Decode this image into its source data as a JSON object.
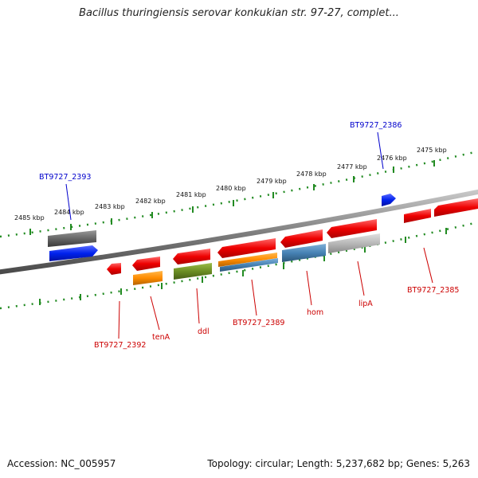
{
  "title": "Bacillus thuringiensis serovar konkukian str. 97-27, complet...",
  "accession": "Accession: NC_005957",
  "summary": "Topology: circular; Length: 5,237,682 bp; Genes: 5,263",
  "colors": {
    "backbone": "#808080",
    "ruler": "#228b22",
    "plus_label": "#0000cc",
    "minus_label": "#cc0000",
    "red": "#ee0000",
    "blue": "#0022ee",
    "gray": "#666666",
    "olive": "#6b8e23",
    "orange": "#ff8c00",
    "steelblue": "#4682b4",
    "lightgray": "#b0b0b0"
  },
  "ruler_labels": [
    "2475 kbp",
    "2476 kbp",
    "2477 kbp",
    "2478 kbp",
    "2479 kbp",
    "2480 kbp",
    "2481 kbp",
    "2482 kbp",
    "2483 kbp",
    "2484 kbp",
    "2485 kbp"
  ],
  "gene_labels": {
    "BT9727_2386": "BT9727_2386",
    "BT9727_2393": "BT9727_2393",
    "BT9727_2392": "BT9727_2392",
    "tenA": "tenA",
    "ddl": "ddl",
    "BT9727_2389": "BT9727_2389",
    "hom": "hom",
    "lipA": "lipA",
    "BT9727_2385": "BT9727_2385"
  }
}
